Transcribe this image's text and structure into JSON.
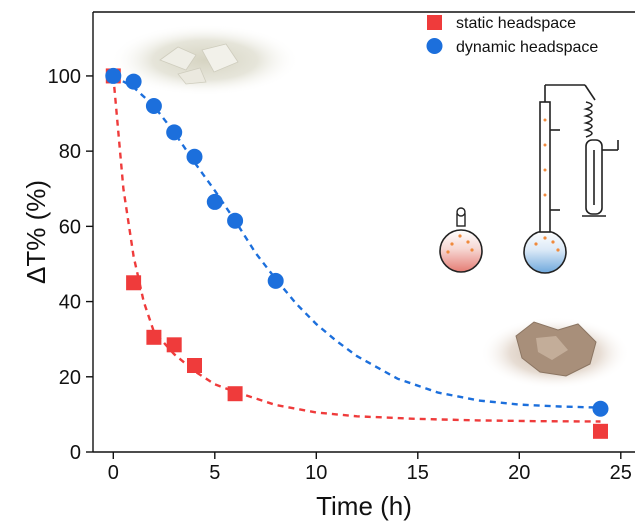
{
  "chart_data": {
    "type": "scatter",
    "title": "",
    "xlabel": "Time (h)",
    "ylabel": "ΔT% (%)",
    "xlim": [
      -1,
      25.7
    ],
    "ylim": [
      0,
      117
    ],
    "x_ticks": [
      0,
      5,
      10,
      15,
      20,
      25
    ],
    "y_ticks": [
      0,
      20,
      40,
      60,
      80,
      100
    ],
    "grid": false,
    "legend_position": "top-right",
    "series": [
      {
        "name": "static headspace",
        "color": "#ef3b3b",
        "marker": "square",
        "x": [
          0,
          1,
          2,
          3,
          4,
          6,
          24
        ],
        "y": [
          100,
          45,
          30.5,
          28.5,
          23,
          15.5,
          5.5
        ],
        "fit_x": [
          0,
          0.5,
          1,
          1.5,
          2,
          3,
          4,
          5,
          6,
          8,
          10,
          12,
          15,
          18,
          21,
          24
        ],
        "fit_y": [
          100,
          70,
          52,
          40,
          32,
          26,
          21.5,
          18,
          16,
          12.5,
          10.5,
          9.5,
          8.8,
          8.4,
          8.2,
          8.1
        ]
      },
      {
        "name": "dynamic headspace",
        "color": "#1c6fdc",
        "marker": "circle",
        "x": [
          0,
          1,
          2,
          3,
          4,
          5,
          6,
          8,
          24
        ],
        "y": [
          100,
          98.5,
          92,
          85,
          78.5,
          66.5,
          61.5,
          45.5,
          11.5
        ],
        "fit_x": [
          0,
          1,
          2,
          3,
          4,
          5,
          6,
          7,
          8,
          9,
          10,
          11,
          12,
          14,
          16,
          18,
          20,
          22,
          24
        ],
        "fit_y": [
          100,
          97,
          92,
          85,
          77,
          69.5,
          61.5,
          53,
          46,
          39.5,
          34,
          29.5,
          25.5,
          19.5,
          15.8,
          13.7,
          12.6,
          12.1,
          11.8
        ]
      }
    ]
  },
  "icons": [
    "crystal-photo-icon",
    "rock-sample-photo-icon",
    "flask-static-headspace-icon",
    "flask-dynamic-headspace-icon",
    "distillation-apparatus-icon"
  ],
  "colors": {
    "axis": "#111111",
    "red": "#ef3b3b",
    "blue": "#1c6fdc"
  }
}
